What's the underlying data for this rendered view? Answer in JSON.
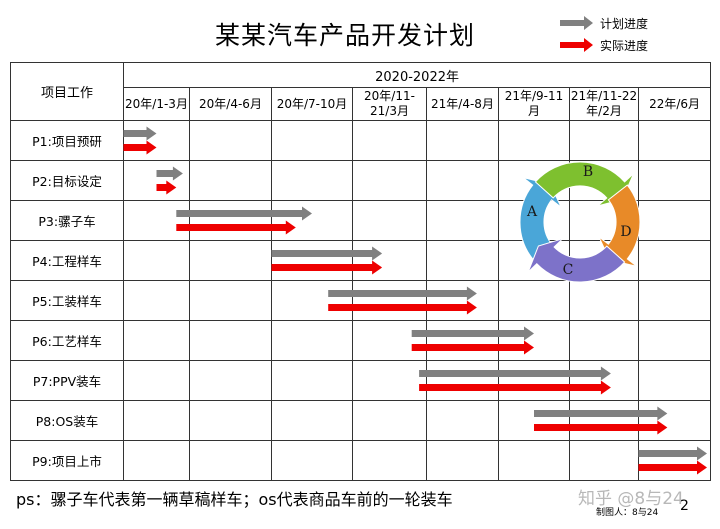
{
  "title": "某某汽车产品开发计划",
  "legend": {
    "plan_label": "计划进度",
    "actual_label": "实际进度",
    "plan_color": "#808080",
    "actual_color": "#ee0000"
  },
  "table": {
    "task_header": "项目工作",
    "range_header": "2020-2022年",
    "periods": [
      [
        "20年/1-3月"
      ],
      [
        "20年/4-6月"
      ],
      [
        "20年/7-10月"
      ],
      [
        "20年/11-",
        "21/3月"
      ],
      [
        "21年/4-8月"
      ],
      [
        "21年/9-11",
        "月"
      ],
      [
        "21年/11-22",
        "年/2月"
      ],
      [
        "22年/6月"
      ]
    ],
    "tasks": [
      "P1:项目预研",
      "P2:目标设定",
      "P3:骡子车",
      "P4:工程样车",
      "P5:工装样车",
      "P6:工艺样车",
      "P7:PPV装车",
      "P8:OS装车",
      "P9:项目上市"
    ]
  },
  "schedule": [
    {
      "task": "P1:项目预研",
      "plan": [
        0.0,
        0.5
      ],
      "actual": [
        0.0,
        0.5
      ]
    },
    {
      "task": "P2:目标设定",
      "plan": [
        0.5,
        0.9
      ],
      "actual": [
        0.5,
        0.8
      ]
    },
    {
      "task": "P3:骡子车",
      "plan": [
        0.8,
        2.5
      ],
      "actual": [
        0.8,
        2.3
      ]
    },
    {
      "task": "P4:工程样车",
      "plan": [
        2.0,
        3.4
      ],
      "actual": [
        2.0,
        3.4
      ]
    },
    {
      "task": "P5:工装样车",
      "plan": [
        2.7,
        4.7
      ],
      "actual": [
        2.7,
        4.7
      ]
    },
    {
      "task": "P6:工艺样车",
      "plan": [
        3.8,
        5.5
      ],
      "actual": [
        3.8,
        5.5
      ]
    },
    {
      "task": "P7:PPV装车",
      "plan": [
        3.9,
        6.6
      ],
      "actual": [
        3.9,
        6.6
      ]
    },
    {
      "task": "P8:OS装车",
      "plan": [
        5.5,
        7.4
      ],
      "actual": [
        5.5,
        7.4
      ]
    },
    {
      "task": "P9:项目上市",
      "plan": [
        7.0,
        7.95
      ],
      "actual": [
        7.0,
        7.95
      ]
    }
  ],
  "cycle": {
    "labels": [
      "A",
      "B",
      "C",
      "D"
    ],
    "colors": [
      "#4aa6d8",
      "#7ec02f",
      "#e88a28",
      "#7d72c9"
    ]
  },
  "footnote": "ps：骡子车代表第一辆草稿样车；os代表商品车前的一轮装车",
  "maker": "制图人：8与24",
  "page_number": "2",
  "watermark": "知乎 @8与24"
}
